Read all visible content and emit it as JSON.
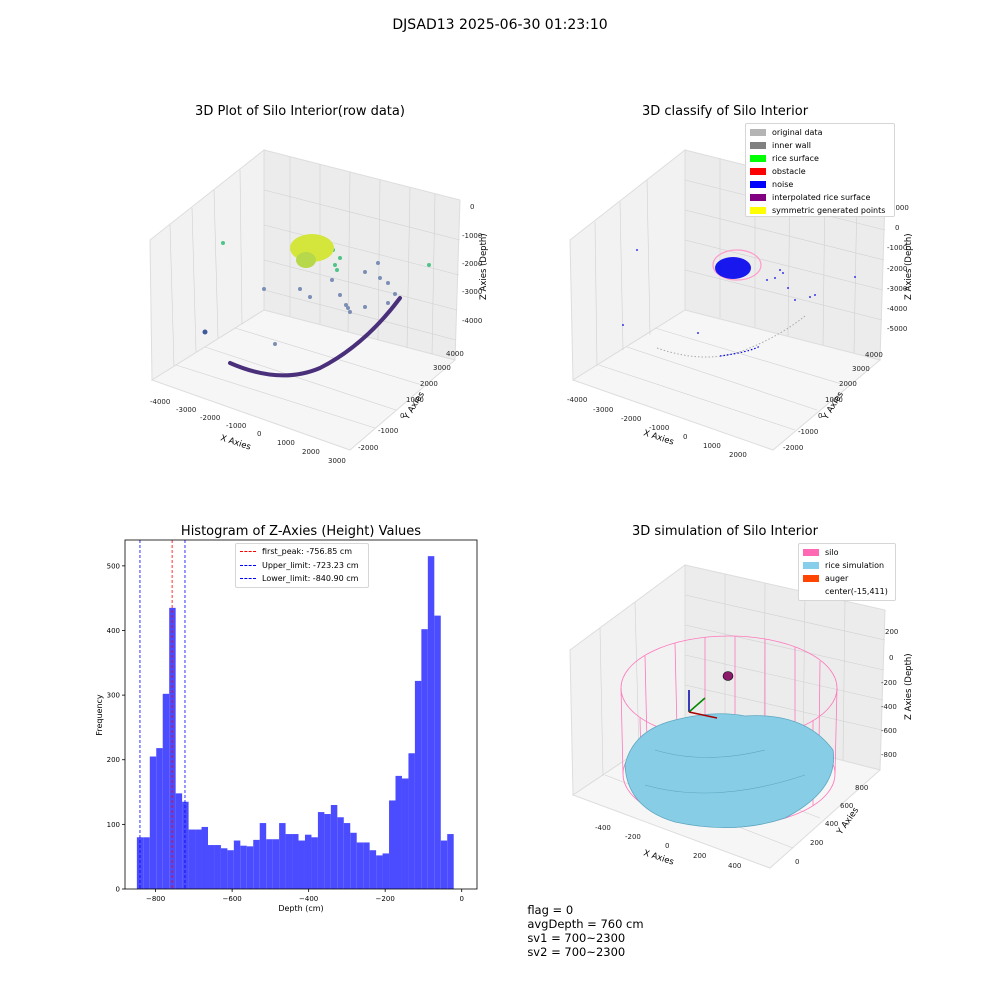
{
  "suptitle": "DJSAD13 2025-06-30 01:23:10",
  "colors": {
    "hist_bar": "#4b4bff",
    "first_peak_line": "#ff0000",
    "limit_line": "#0000ff",
    "silo_wire": "#ff77bb",
    "rice_surface": "#87cde6",
    "auger": "#ff4500",
    "rice_top": "#d4e63c",
    "raw_green": "#4fc48a",
    "raw_purple": "#4a2f7a",
    "noise_blue": "#0000ee"
  },
  "plot1": {
    "title": "3D Plot of Silo Interior(row data)",
    "xlabel": "X Axies",
    "ylabel": "Y Axies",
    "zlabel": "Z Axies (Depth)",
    "x_ticks": [
      "-4000",
      "-3000",
      "-2000",
      "-1000",
      "0",
      "1000",
      "2000",
      "3000"
    ],
    "y_ticks": [
      "-2000",
      "-1000",
      "0",
      "1000",
      "2000",
      "3000",
      "4000"
    ],
    "z_ticks": [
      "-4000",
      "-3000",
      "-2000",
      "-1000",
      "0"
    ]
  },
  "plot2": {
    "title": "3D classify of Silo Interior",
    "xlabel": "X Axies",
    "ylabel": "Y Axies",
    "zlabel": "Z Axies (Depth)",
    "x_ticks": [
      "-4000",
      "-3000",
      "-2000",
      "-1000",
      "0",
      "1000",
      "2000"
    ],
    "y_ticks": [
      "-2000",
      "-1000",
      "0",
      "1000",
      "2000",
      "3000",
      "4000"
    ],
    "z_ticks": [
      "-5000",
      "-4000",
      "-3000",
      "-2000",
      "-1000",
      "0",
      "1000"
    ],
    "legend": [
      {
        "label": "original data",
        "color": "#b4b4b4"
      },
      {
        "label": "inner wall",
        "color": "#808080"
      },
      {
        "label": "rice surface",
        "color": "#00ff00"
      },
      {
        "label": "obstacle",
        "color": "#ff0000"
      },
      {
        "label": "noise",
        "color": "#0000ff"
      },
      {
        "label": "interpolated rice surface",
        "color": "#800080"
      },
      {
        "label": "symmetric generated points",
        "color": "#ffff00"
      }
    ]
  },
  "plot4": {
    "title": "3D simulation of Silo Interior",
    "xlabel": "X Axies",
    "ylabel": "Y Axies",
    "zlabel": "Z Axies (Depth)",
    "x_ticks": [
      "-400",
      "-200",
      "0",
      "200",
      "400"
    ],
    "y_ticks": [
      "0",
      "200",
      "400",
      "600",
      "800"
    ],
    "z_ticks": [
      "-800",
      "-600",
      "-400",
      "-200",
      "0",
      "200"
    ],
    "legend": [
      {
        "label": "silo",
        "color": "#ff69b4"
      },
      {
        "label": "rice simulation",
        "color": "#87ceeb"
      },
      {
        "label": "auger",
        "color": "#ff4500"
      },
      {
        "label": "center(-15,411)",
        "color": ""
      }
    ]
  },
  "chart_data": {
    "type": "bar",
    "title": "Histogram of Z-Axies (Height) Values",
    "xlabel": "Depth (cm)",
    "ylabel": "Frequency",
    "xlim": [
      -880,
      40
    ],
    "ylim": [
      0,
      540
    ],
    "x_ticks": [
      -800,
      -600,
      -400,
      -200,
      0
    ],
    "y_ticks": [
      0,
      100,
      200,
      300,
      400,
      500
    ],
    "bin_start": -849,
    "bin_width": 16.9,
    "values": [
      80,
      80,
      205,
      218,
      302,
      435,
      148,
      135,
      92,
      92,
      96,
      68,
      68,
      63,
      60,
      75,
      67,
      66,
      76,
      102,
      77,
      77,
      102,
      85,
      85,
      75,
      84,
      80,
      119,
      116,
      130,
      111,
      102,
      87,
      72,
      72,
      60,
      52,
      55,
      137,
      175,
      171,
      210,
      322,
      402,
      515,
      423,
      75,
      85
    ],
    "vlines": [
      {
        "name": "first_peak: -756.85 cm",
        "x": -756.85,
        "color": "#ff0000"
      },
      {
        "name": "Upper_limit: -723.23 cm",
        "x": -723.23,
        "color": "#0000ff"
      },
      {
        "name": "Lower_limit: -840.90 cm",
        "x": -840.9,
        "color": "#0000ff"
      }
    ],
    "legend_position": "top-center",
    "grid": false
  },
  "footer": {
    "flag": "flag = 0",
    "avg_depth": "avgDepth = 760 cm",
    "sv1": "sv1 = 700~2300",
    "sv2": "sv2 = 700~2300"
  }
}
